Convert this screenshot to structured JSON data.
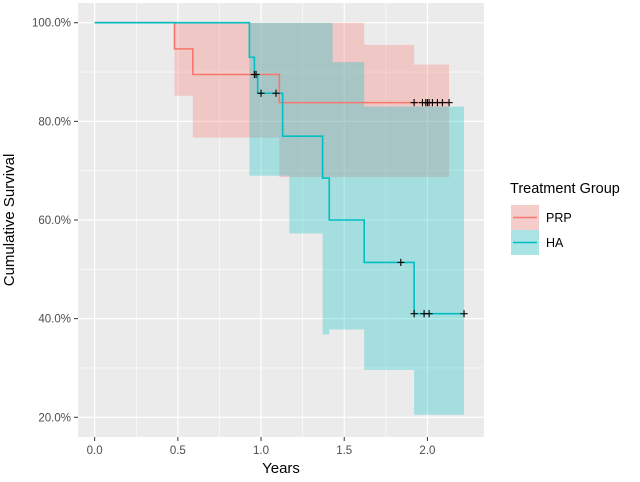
{
  "chart_data": {
    "type": "line",
    "subtype": "kaplan-meier survival curve with confidence bands",
    "xlabel": "Years",
    "ylabel": "Cumulative Survival",
    "xlim": [
      -0.1,
      2.34
    ],
    "ylim": [
      0.16,
      1.04
    ],
    "x_ticks": [
      0.0,
      0.5,
      1.0,
      1.5,
      2.0
    ],
    "x_tick_labels": [
      "0.0",
      "0.5",
      "1.0",
      "1.5",
      "2.0"
    ],
    "y_ticks": [
      0.2,
      0.4,
      0.6,
      0.8,
      1.0
    ],
    "y_tick_labels": [
      "20.0%",
      "40.0%",
      "60.0%",
      "80.0%",
      "100.0%"
    ],
    "grid": true,
    "legend": {
      "title": "Treatment Group",
      "position": "right",
      "entries": [
        "PRP",
        "HA"
      ]
    },
    "series": [
      {
        "name": "PRP",
        "color": "#F8766D",
        "band_color": "#F8766D",
        "steps": [
          {
            "x": 0.0,
            "y": 1.0
          },
          {
            "x": 0.48,
            "y": 0.947
          },
          {
            "x": 0.59,
            "y": 0.895
          },
          {
            "x": 1.11,
            "y": 0.838
          },
          {
            "x": 2.13,
            "y": 0.838
          }
        ],
        "lower_steps": [
          {
            "x": 0.48,
            "y": 0.852
          },
          {
            "x": 0.59,
            "y": 0.767
          },
          {
            "x": 1.11,
            "y": 0.687
          },
          {
            "x": 2.13,
            "y": 0.687
          }
        ],
        "upper_steps": [
          {
            "x": 0.48,
            "y": 1.0
          },
          {
            "x": 1.11,
            "y": 1.0
          },
          {
            "x": 1.41,
            "y": 1.0
          },
          {
            "x": 1.62,
            "y": 0.955
          },
          {
            "x": 1.92,
            "y": 0.915
          },
          {
            "x": 2.13,
            "y": 0.915
          }
        ],
        "censored": [
          0.96,
          1.92,
          1.97,
          1.99,
          2.0,
          2.01,
          2.03,
          2.06,
          2.09,
          2.13
        ]
      },
      {
        "name": "HA",
        "color": "#00BFC4",
        "band_color": "#00BFC4",
        "steps": [
          {
            "x": 0.0,
            "y": 1.0
          },
          {
            "x": 0.93,
            "y": 0.93
          },
          {
            "x": 0.96,
            "y": 0.895
          },
          {
            "x": 0.98,
            "y": 0.857
          },
          {
            "x": 1.13,
            "y": 0.77
          },
          {
            "x": 1.37,
            "y": 0.685
          },
          {
            "x": 1.41,
            "y": 0.6
          },
          {
            "x": 1.62,
            "y": 0.514
          },
          {
            "x": 1.92,
            "y": 0.41
          },
          {
            "x": 2.22,
            "y": 0.41
          }
        ],
        "lower_steps": [
          {
            "x": 0.93,
            "y": 0.69
          },
          {
            "x": 1.13,
            "y": 0.69
          },
          {
            "x": 1.17,
            "y": 0.573
          },
          {
            "x": 1.37,
            "y": 0.368
          },
          {
            "x": 1.41,
            "y": 0.378
          },
          {
            "x": 1.62,
            "y": 0.296
          },
          {
            "x": 1.92,
            "y": 0.205
          },
          {
            "x": 2.22,
            "y": 0.205
          }
        ],
        "upper_steps": [
          {
            "x": 0.93,
            "y": 1.0
          },
          {
            "x": 0.98,
            "y": 1.0
          },
          {
            "x": 1.41,
            "y": 1.0
          },
          {
            "x": 1.43,
            "y": 0.92
          },
          {
            "x": 1.62,
            "y": 0.83
          },
          {
            "x": 2.22,
            "y": 0.83
          }
        ],
        "censored": [
          0.97,
          1.0,
          1.09,
          1.84,
          1.92,
          1.98,
          2.01,
          2.22
        ]
      }
    ]
  }
}
